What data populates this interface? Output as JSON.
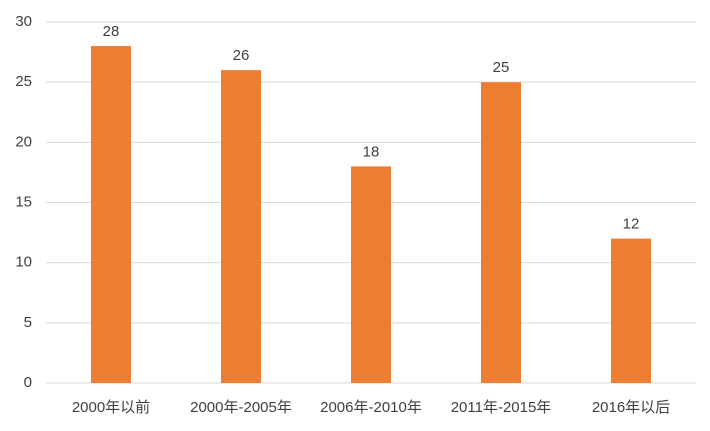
{
  "chart_data": {
    "type": "bar",
    "categories": [
      "2000年以前",
      "2000年-2005年",
      "2006年-2010年",
      "2011年-2015年",
      "2016年以后"
    ],
    "values": [
      28,
      26,
      18,
      25,
      12
    ],
    "color": "#ed7d31",
    "ylim": [
      0,
      30
    ],
    "yticks": [
      0,
      5,
      10,
      15,
      20,
      25,
      30
    ],
    "grid": true
  }
}
